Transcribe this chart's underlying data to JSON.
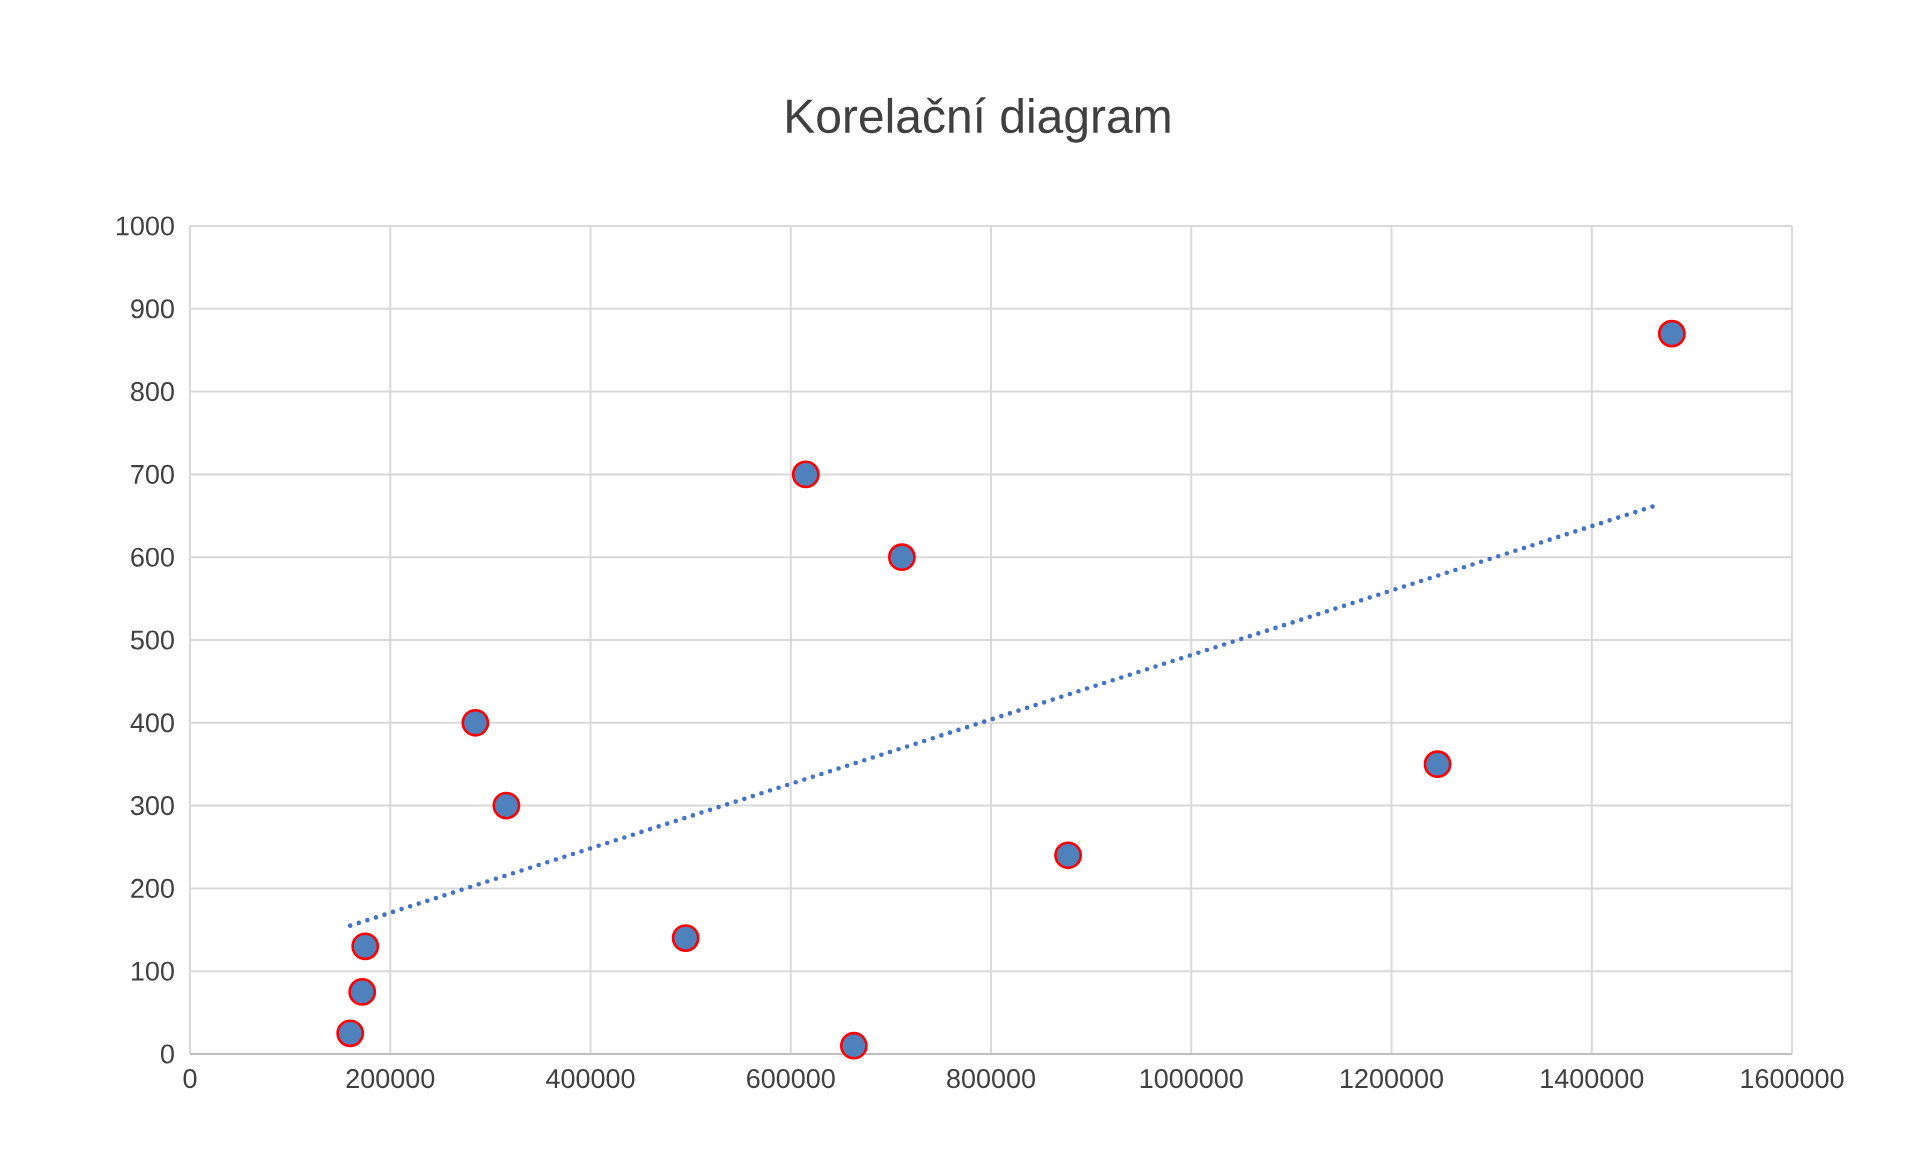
{
  "chart_data": {
    "type": "scatter",
    "title": "Korelační diagram",
    "xlim": [
      0,
      1600000
    ],
    "ylim": [
      0,
      1000
    ],
    "xticks": [
      0,
      200000,
      400000,
      600000,
      800000,
      1000000,
      1200000,
      1400000,
      1600000
    ],
    "yticks": [
      0,
      100,
      200,
      300,
      400,
      500,
      600,
      700,
      800,
      900,
      1000
    ],
    "grid": true,
    "marker": "circle",
    "series": [
      {
        "color": "#4f81bd",
        "x": [
          160000,
          172000,
          175000,
          285000,
          316000,
          495000,
          615000,
          663000,
          711000,
          877000,
          1246000,
          1480000
        ],
        "values": [
          25,
          75,
          130,
          400,
          300,
          140,
          700,
          10,
          600,
          240,
          350,
          870
        ]
      },
      {
        "type": "line",
        "color": "#4472c4",
        "marker": "none",
        "line_style": "dotted",
        "x": [
          160000,
          1468000
        ],
        "values": [
          155,
          664
        ]
      }
    ]
  }
}
